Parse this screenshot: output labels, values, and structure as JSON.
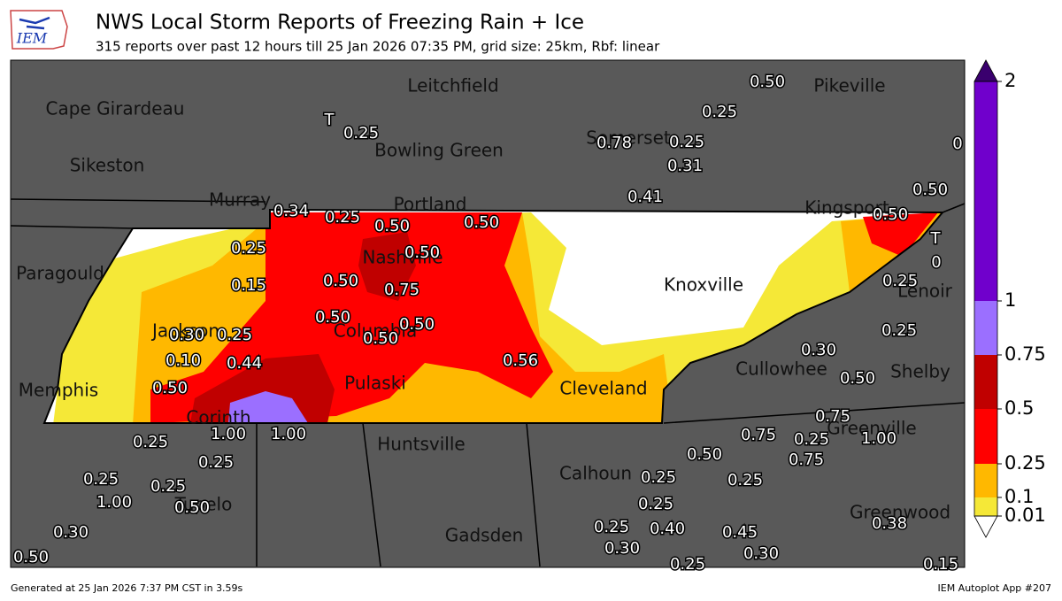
{
  "header": {
    "logo": "IEM",
    "title": "NWS Local Storm Reports of Freezing Rain + Ice",
    "subtitle": "315 reports over past 12 hours till 25 Jan 2026 07:35 PM, grid size: 25km, Rbf: linear"
  },
  "cities": [
    "Leitchfield",
    "Cape Girardeau",
    "Bowling Green",
    "Sikeston",
    "Somerset",
    "Pikeville",
    "Murray",
    "Portland",
    "Kingsport",
    "Nashville",
    "Paragould",
    "Knoxville",
    "Lenoir",
    "Jackson",
    "Columbia",
    "Cullowhee",
    "Shelby",
    "Memphis",
    "Pulaski",
    "Cleveland",
    "Corinth",
    "Greenville",
    "Huntsville",
    "Calhoun",
    "Tupelo",
    "Greenwood",
    "Gadsden"
  ],
  "reports": [
    "T",
    "0.25",
    "0.50",
    "0.25",
    "0.78",
    "0.25",
    "0.31",
    "0",
    "0.50",
    "0.41",
    "0.34",
    "0.25",
    "0.50",
    "0.50",
    "0.50",
    "T",
    "0",
    "0.25",
    "0.50",
    "0.15",
    "0.50",
    "0.75",
    "0.25",
    "0.50",
    "0.50",
    "0.30",
    "0.25",
    "0.50",
    "0.25",
    "0.30",
    "0.10",
    "0.44",
    "0.56",
    "0.50",
    "0.50",
    "1.00",
    "1.00",
    "0.75",
    "0.25",
    "0.75",
    "0.25",
    "1.00",
    "0.50",
    "0.75",
    "0.25",
    "0.25",
    "0.25",
    "0.25",
    "0.25",
    "1.00",
    "0.50",
    "0.25",
    "0.38",
    "0.30",
    "0.25",
    "0.40",
    "0.45",
    "0.30",
    "0.30",
    "0.50",
    "0.25",
    "0.15"
  ],
  "colorbar": {
    "ticks": [
      0.01,
      0.1,
      0.25,
      0.5,
      0.75,
      1,
      2
    ],
    "colors": [
      "#f5e837",
      "#ffb800",
      "#ff0000",
      "#c00000",
      "#9b6fff",
      "#7000cc"
    ],
    "over_color": "#3a006e",
    "under_color": "#ffffff"
  },
  "footer": {
    "left": "Generated at 25 Jan 2026 7:37 PM CST in 3.59s",
    "right": "IEM Autoplot App #207"
  }
}
